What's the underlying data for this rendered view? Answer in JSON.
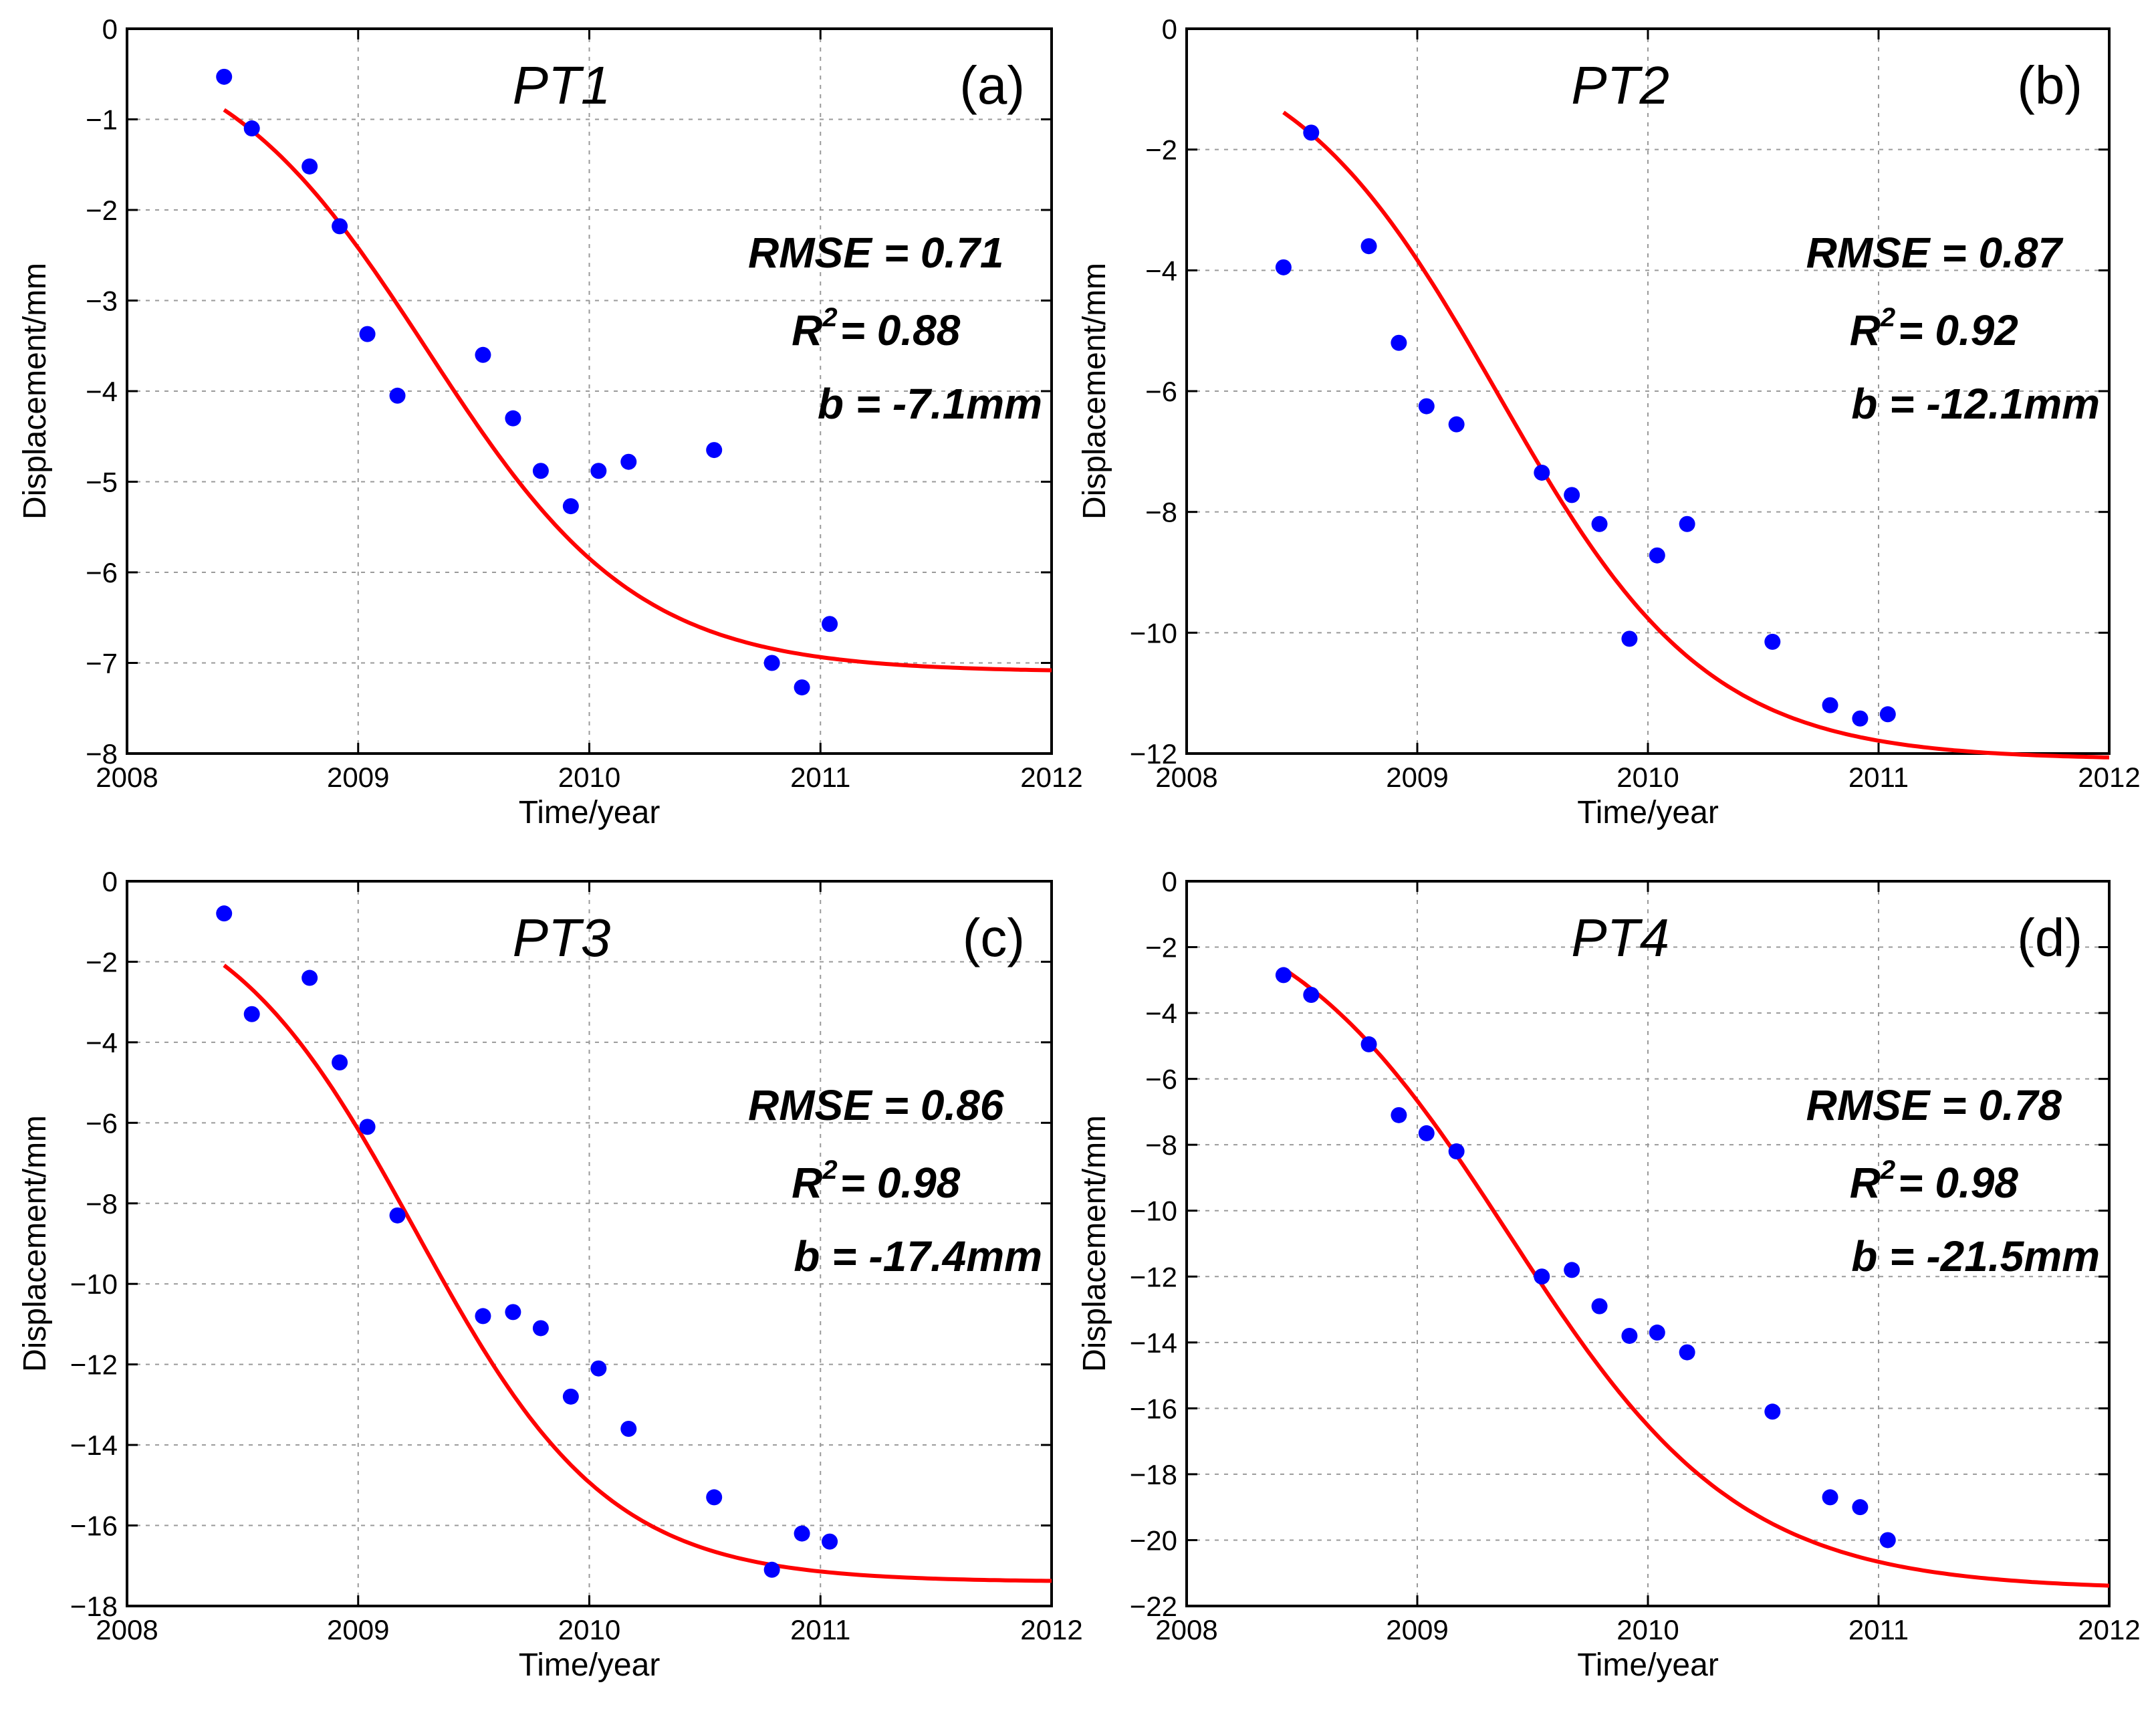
{
  "figure": {
    "background": "#ffffff"
  },
  "chart_data": [
    {
      "type": "scatter",
      "panel_letter": "(a)",
      "title": "PT1",
      "xlabel": "Time/year",
      "ylabel": "Displacement/mm",
      "xlim": [
        2008,
        2012
      ],
      "ylim": [
        -8,
        0
      ],
      "xticks": [
        2008,
        2009,
        2010,
        2011,
        2012
      ],
      "xtick_labels": [
        "2008",
        "2009",
        "2010",
        "2011",
        "2012"
      ],
      "yticks": [
        0,
        -1,
        -2,
        -3,
        -4,
        -5,
        -6,
        -7,
        -8
      ],
      "ytick_labels": [
        "0",
        "−1",
        "−2",
        "−3",
        "−4",
        "−5",
        "−6",
        "−7",
        "−8"
      ],
      "grid": true,
      "stats": {
        "rmse": "RMSE = 0.71",
        "r2_letter": "R",
        "r2_exp": "2",
        "r2_value": "= 0.88",
        "b": "b =  -7.1mm"
      },
      "series": [
        {
          "name": "observed",
          "color": "#0000ff",
          "x": [
            2008.42,
            2008.54,
            2008.79,
            2008.92,
            2009.04,
            2009.17,
            2009.54,
            2009.67,
            2009.79,
            2009.92,
            2010.04,
            2010.17,
            2010.54,
            2010.79,
            2010.92,
            2011.04
          ],
          "y": [
            -0.53,
            -1.1,
            -1.52,
            -2.18,
            -3.37,
            -4.05,
            -3.6,
            -4.3,
            -4.88,
            -5.27,
            -4.88,
            -4.78,
            -4.65,
            -7.0,
            -7.27,
            -6.57
          ]
        },
        {
          "name": "fit",
          "color": "#ff0000",
          "b": -7.1,
          "x0": 2009.3,
          "k": 2.2,
          "x_start": 2008.42,
          "x_end": 2012.0
        }
      ]
    },
    {
      "type": "scatter",
      "panel_letter": "(b)",
      "title": "PT2",
      "xlabel": "Time/year",
      "ylabel": "Displacement/mm",
      "xlim": [
        2008,
        2012
      ],
      "ylim": [
        -12,
        0
      ],
      "xticks": [
        2008,
        2009,
        2010,
        2011,
        2012
      ],
      "xtick_labels": [
        "2008",
        "2009",
        "2010",
        "2011",
        "2012"
      ],
      "yticks": [
        0,
        -2,
        -4,
        -6,
        -8,
        -10,
        -12
      ],
      "ytick_labels": [
        "0",
        "−2",
        "−4",
        "−6",
        "−8",
        "−10",
        "−12"
      ],
      "grid": true,
      "stats": {
        "rmse": "RMSE = 0.87",
        "r2_letter": "R",
        "r2_exp": "2",
        "r2_value": "= 0.92",
        "b": "b =  -12.1mm"
      },
      "series": [
        {
          "name": "observed",
          "color": "#0000ff",
          "x": [
            2008.42,
            2008.54,
            2008.79,
            2008.92,
            2009.04,
            2009.17,
            2009.54,
            2009.67,
            2009.79,
            2009.92,
            2010.04,
            2010.17,
            2010.54,
            2010.79,
            2010.92,
            2011.04
          ],
          "y": [
            -3.95,
            -1.72,
            -3.6,
            -5.2,
            -6.25,
            -6.55,
            -7.35,
            -7.72,
            -8.2,
            -10.1,
            -8.72,
            -8.2,
            -10.15,
            -11.2,
            -11.42,
            -11.35
          ]
        },
        {
          "name": "fit",
          "color": "#ff0000",
          "b": -12.1,
          "x0": 2009.35,
          "k": 2.2,
          "x_start": 2008.42,
          "x_end": 2012.0
        }
      ]
    },
    {
      "type": "scatter",
      "panel_letter": "(c)",
      "title": "PT3",
      "xlabel": "Time/year",
      "ylabel": "Displacement/mm",
      "xlim": [
        2008,
        2012
      ],
      "ylim": [
        -18,
        0
      ],
      "xticks": [
        2008,
        2009,
        2010,
        2011,
        2012
      ],
      "xtick_labels": [
        "2008",
        "2009",
        "2010",
        "2011",
        "2012"
      ],
      "yticks": [
        0,
        -2,
        -4,
        -6,
        -8,
        -10,
        -12,
        -14,
        -16,
        -18
      ],
      "ytick_labels": [
        "0",
        "−2",
        "−4",
        "−6",
        "−8",
        "−10",
        "−12",
        "−14",
        "−16",
        "−18"
      ],
      "grid": true,
      "stats": {
        "rmse": "RMSE = 0.86",
        "r2_letter": "R",
        "r2_exp": "2",
        "r2_value": "= 0.98",
        "b": "b =  -17.4mm"
      },
      "series": [
        {
          "name": "observed",
          "color": "#0000ff",
          "x": [
            2008.42,
            2008.54,
            2008.79,
            2008.92,
            2009.04,
            2009.17,
            2009.54,
            2009.67,
            2009.79,
            2009.92,
            2010.04,
            2010.17,
            2010.54,
            2010.79,
            2010.92,
            2011.04
          ],
          "y": [
            -0.8,
            -3.3,
            -2.4,
            -4.5,
            -6.1,
            -8.3,
            -10.8,
            -10.7,
            -11.1,
            -12.8,
            -12.1,
            -13.6,
            -15.3,
            -17.1,
            -16.2,
            -16.4
          ]
        },
        {
          "name": "fit",
          "color": "#ff0000",
          "b": -17.4,
          "x0": 2009.25,
          "k": 2.4,
          "x_start": 2008.42,
          "x_end": 2012.0
        }
      ]
    },
    {
      "type": "scatter",
      "panel_letter": "(d)",
      "title": "PT4",
      "xlabel": "Time/year",
      "ylabel": "Displacement/mm",
      "xlim": [
        2008,
        2012
      ],
      "ylim": [
        -22,
        0
      ],
      "xticks": [
        2008,
        2009,
        2010,
        2011,
        2012
      ],
      "xtick_labels": [
        "2008",
        "2009",
        "2010",
        "2011",
        "2012"
      ],
      "yticks": [
        0,
        -2,
        -4,
        -6,
        -8,
        -10,
        -12,
        -14,
        -16,
        -18,
        -20,
        -22
      ],
      "ytick_labels": [
        "0",
        "−2",
        "−4",
        "−6",
        "−8",
        "−10",
        "−12",
        "−14",
        "−16",
        "−18",
        "−20",
        "−22"
      ],
      "grid": true,
      "stats": {
        "rmse": "RMSE = 0.78",
        "r2_letter": "R",
        "r2_exp": "2",
        "r2_value": "= 0.98",
        "b": "b =  -21.5mm"
      },
      "series": [
        {
          "name": "observed",
          "color": "#0000ff",
          "x": [
            2008.42,
            2008.54,
            2008.79,
            2008.92,
            2009.04,
            2009.17,
            2009.54,
            2009.67,
            2009.79,
            2009.92,
            2010.04,
            2010.17,
            2010.54,
            2010.79,
            2010.92,
            2011.04
          ],
          "y": [
            -2.85,
            -3.45,
            -4.95,
            -7.1,
            -7.65,
            -8.2,
            -12.0,
            -11.8,
            -12.9,
            -13.8,
            -13.7,
            -14.3,
            -16.1,
            -18.7,
            -19.0,
            -20.0
          ]
        },
        {
          "name": "fit",
          "color": "#ff0000",
          "b": -21.5,
          "x0": 2009.4,
          "k": 2.0,
          "x_start": 2008.42,
          "x_end": 2012.0
        }
      ]
    }
  ]
}
